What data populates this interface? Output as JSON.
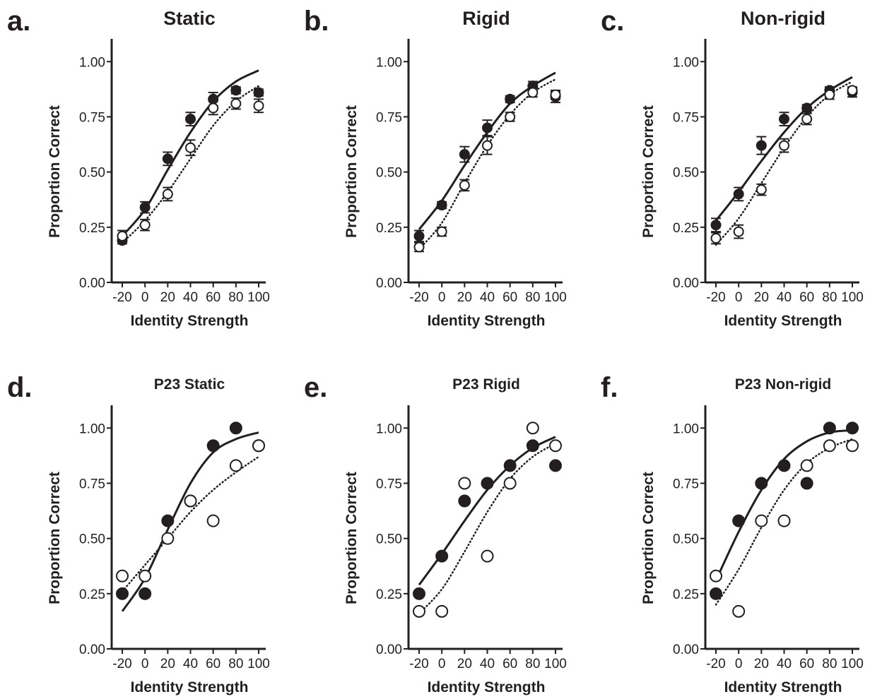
{
  "figure": {
    "panels": [
      {
        "letter": "a.",
        "title": "Static"
      },
      {
        "letter": "b.",
        "title": "Rigid"
      },
      {
        "letter": "c.",
        "title": "Non-rigid"
      },
      {
        "letter": "d.",
        "title": "P23 Static"
      },
      {
        "letter": "e.",
        "title": "P23 Rigid"
      },
      {
        "letter": "f.",
        "title": "P23 Non-rigid"
      }
    ]
  },
  "chart_data": [
    {
      "type": "scatter",
      "title": "Static",
      "xlabel": "Identity Strength",
      "ylabel": "Proportion Correct",
      "xticks": [
        "-20",
        "0",
        "20",
        "40",
        "60",
        "80",
        "100"
      ],
      "yticks": [
        "0.00",
        "0.25",
        "0.50",
        "0.75",
        "1.00"
      ],
      "xlim": [
        -20,
        100
      ],
      "ylim": [
        0,
        1.1
      ],
      "x": [
        -20,
        0,
        20,
        40,
        60,
        80,
        100
      ],
      "series": [
        {
          "style": "filled",
          "values": [
            0.19,
            0.34,
            0.56,
            0.74,
            0.83,
            0.87,
            0.86
          ],
          "errors": [
            0.015,
            0.025,
            0.03,
            0.03,
            0.03,
            0.015,
            0.015
          ]
        },
        {
          "style": "open",
          "values": [
            0.21,
            0.26,
            0.4,
            0.61,
            0.79,
            0.81,
            0.8
          ],
          "errors": [
            0.025,
            0.025,
            0.03,
            0.035,
            0.03,
            0.025,
            0.03
          ]
        }
      ],
      "fits": [
        {
          "style": "solid",
          "x": [
            -20,
            0,
            20,
            40,
            60,
            80,
            100
          ],
          "y": [
            0.21,
            0.33,
            0.51,
            0.68,
            0.82,
            0.91,
            0.96
          ]
        },
        {
          "style": "dotted",
          "x": [
            -20,
            0,
            20,
            40,
            60,
            80,
            100
          ],
          "y": [
            0.18,
            0.28,
            0.41,
            0.56,
            0.71,
            0.82,
            0.89
          ]
        }
      ]
    },
    {
      "type": "scatter",
      "title": "Rigid",
      "xlabel": "Identity Strength",
      "ylabel": "Proportion Correct",
      "xticks": [
        "-20",
        "0",
        "20",
        "40",
        "60",
        "80",
        "100"
      ],
      "yticks": [
        "0.00",
        "0.25",
        "0.50",
        "0.75",
        "1.00"
      ],
      "xlim": [
        -20,
        100
      ],
      "ylim": [
        0,
        1.1
      ],
      "x": [
        -20,
        0,
        20,
        40,
        60,
        80,
        100
      ],
      "series": [
        {
          "style": "filled",
          "values": [
            0.21,
            0.35,
            0.58,
            0.7,
            0.83,
            0.89,
            0.84
          ],
          "errors": [
            0.025,
            0.015,
            0.035,
            0.035,
            0.015,
            0.02,
            0.025
          ]
        },
        {
          "style": "open",
          "values": [
            0.16,
            0.23,
            0.44,
            0.62,
            0.75,
            0.86,
            0.85
          ],
          "errors": [
            0.02,
            0.02,
            0.025,
            0.04,
            0.02,
            0.02,
            0.02
          ]
        }
      ],
      "fits": [
        {
          "style": "solid",
          "x": [
            -20,
            0,
            20,
            40,
            60,
            80,
            100
          ],
          "y": [
            0.24,
            0.37,
            0.53,
            0.68,
            0.81,
            0.89,
            0.95
          ]
        },
        {
          "style": "dotted",
          "x": [
            -20,
            0,
            20,
            40,
            60,
            80,
            100
          ],
          "y": [
            0.15,
            0.27,
            0.45,
            0.62,
            0.76,
            0.86,
            0.92
          ]
        }
      ]
    },
    {
      "type": "scatter",
      "title": "Non-rigid",
      "xlabel": "Identity Strength",
      "ylabel": "Proportion Correct",
      "xticks": [
        "-20",
        "0",
        "20",
        "40",
        "60",
        "80",
        "100"
      ],
      "yticks": [
        "0.00",
        "0.25",
        "0.50",
        "0.75",
        "1.00"
      ],
      "xlim": [
        -20,
        100
      ],
      "ylim": [
        0,
        1.1
      ],
      "x": [
        -20,
        0,
        20,
        40,
        60,
        80,
        100
      ],
      "series": [
        {
          "style": "filled",
          "values": [
            0.26,
            0.4,
            0.62,
            0.74,
            0.79,
            0.87,
            0.86
          ],
          "errors": [
            0.03,
            0.03,
            0.04,
            0.03,
            0.015,
            0.015,
            0.02
          ]
        },
        {
          "style": "open",
          "values": [
            0.2,
            0.23,
            0.42,
            0.62,
            0.74,
            0.85,
            0.87
          ],
          "errors": [
            0.025,
            0.03,
            0.025,
            0.03,
            0.025,
            0.02,
            0.015
          ]
        }
      ],
      "fits": [
        {
          "style": "solid",
          "x": [
            -20,
            0,
            20,
            40,
            60,
            80,
            100
          ],
          "y": [
            0.28,
            0.41,
            0.55,
            0.68,
            0.79,
            0.87,
            0.93
          ]
        },
        {
          "style": "dotted",
          "x": [
            -20,
            0,
            20,
            40,
            60,
            80,
            100
          ],
          "y": [
            0.17,
            0.29,
            0.45,
            0.61,
            0.75,
            0.85,
            0.91
          ]
        }
      ]
    },
    {
      "type": "scatter",
      "title": "P23 Static",
      "xlabel": "Identity Strength",
      "ylabel": "Proportion Correct",
      "xticks": [
        "-20",
        "0",
        "20",
        "40",
        "60",
        "80",
        "100"
      ],
      "yticks": [
        "0.00",
        "0.25",
        "0.50",
        "0.75",
        "1.00"
      ],
      "xlim": [
        -20,
        100
      ],
      "ylim": [
        0,
        1.1
      ],
      "x": [
        -20,
        0,
        20,
        40,
        60,
        80,
        100
      ],
      "series": [
        {
          "style": "filled",
          "values": [
            0.25,
            0.25,
            0.58,
            0.67,
            0.92,
            1.0,
            0.92
          ]
        },
        {
          "style": "open",
          "values": [
            0.33,
            0.33,
            0.5,
            0.67,
            0.58,
            0.83,
            0.92
          ]
        }
      ],
      "fits": [
        {
          "style": "solid",
          "x": [
            -20,
            0,
            20,
            40,
            60,
            80,
            100
          ],
          "y": [
            0.17,
            0.32,
            0.54,
            0.75,
            0.89,
            0.95,
            0.98
          ]
        },
        {
          "style": "dotted",
          "x": [
            -20,
            0,
            20,
            40,
            60,
            80,
            100
          ],
          "y": [
            0.26,
            0.38,
            0.5,
            0.62,
            0.72,
            0.8,
            0.87
          ]
        }
      ]
    },
    {
      "type": "scatter",
      "title": "P23 Rigid",
      "xlabel": "Identity Strength",
      "ylabel": "Proportion Correct",
      "xticks": [
        "-20",
        "0",
        "20",
        "40",
        "60",
        "80",
        "100"
      ],
      "yticks": [
        "0.00",
        "0.25",
        "0.50",
        "0.75",
        "1.00"
      ],
      "xlim": [
        -20,
        100
      ],
      "ylim": [
        0,
        1.1
      ],
      "x": [
        -20,
        0,
        20,
        40,
        60,
        80,
        100
      ],
      "series": [
        {
          "style": "filled",
          "values": [
            0.25,
            0.42,
            0.67,
            0.75,
            0.83,
            0.92,
            0.83
          ]
        },
        {
          "style": "open",
          "values": [
            0.17,
            0.17,
            0.75,
            0.42,
            0.75,
            1.0,
            0.92
          ]
        }
      ],
      "fits": [
        {
          "style": "solid",
          "x": [
            -20,
            0,
            20,
            40,
            60,
            80,
            100
          ],
          "y": [
            0.29,
            0.43,
            0.58,
            0.72,
            0.83,
            0.91,
            0.96
          ]
        },
        {
          "style": "dotted",
          "x": [
            -20,
            0,
            20,
            40,
            60,
            80,
            100
          ],
          "y": [
            0.16,
            0.27,
            0.44,
            0.62,
            0.77,
            0.87,
            0.93
          ]
        }
      ]
    },
    {
      "type": "scatter",
      "title": "P23 Non-rigid",
      "xlabel": "Identity Strength",
      "ylabel": "Proportion Correct",
      "xticks": [
        "-20",
        "0",
        "20",
        "40",
        "60",
        "80",
        "100"
      ],
      "yticks": [
        "0.00",
        "0.25",
        "0.50",
        "0.75",
        "1.00"
      ],
      "xlim": [
        -20,
        100
      ],
      "ylim": [
        0,
        1.1
      ],
      "x": [
        -20,
        0,
        20,
        40,
        60,
        80,
        100
      ],
      "series": [
        {
          "style": "filled",
          "values": [
            0.25,
            0.58,
            0.75,
            0.83,
            0.75,
            1.0,
            1.0
          ]
        },
        {
          "style": "open",
          "values": [
            0.33,
            0.17,
            0.58,
            0.58,
            0.83,
            0.92,
            0.92
          ]
        }
      ],
      "fits": [
        {
          "style": "solid",
          "x": [
            -20,
            0,
            20,
            40,
            60,
            80,
            100
          ],
          "y": [
            0.31,
            0.53,
            0.72,
            0.86,
            0.94,
            0.98,
            0.99
          ]
        },
        {
          "style": "dotted",
          "x": [
            -20,
            0,
            20,
            40,
            60,
            80,
            100
          ],
          "y": [
            0.2,
            0.36,
            0.55,
            0.72,
            0.84,
            0.91,
            0.95
          ]
        }
      ]
    }
  ]
}
